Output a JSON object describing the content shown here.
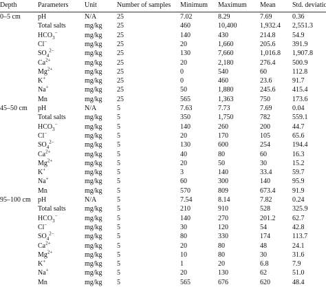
{
  "table": {
    "header": [
      "Depth",
      "Parameters",
      "Unit",
      "Number of samples",
      "Minimum",
      "Maximum",
      "Mean",
      "Std. deviation"
    ],
    "groups": [
      {
        "depth": "0–5 cm",
        "rows": [
          [
            {
              "base": "pH"
            },
            "N/A",
            "25",
            "7.02",
            "8.29",
            "7.69",
            "0.36"
          ],
          [
            {
              "base": "Total salts"
            },
            "mg/kg",
            "25",
            "460",
            "10,400",
            "1,932.4",
            "2,551.3"
          ],
          [
            {
              "base": "HCO",
              "sub": "3",
              "sup": "−"
            },
            "mg/kg",
            "25",
            "140",
            "430",
            "214.8",
            "54.9"
          ],
          [
            {
              "base": "Cl",
              "sup": "−"
            },
            "mg/kg",
            "25",
            "20",
            "1,660",
            "205.6",
            "391.9"
          ],
          [
            {
              "base": "SO",
              "sub": "4",
              "sup": "2−"
            },
            "mg/kg",
            "25",
            "130",
            "7,660",
            "1,016.8",
            "1,907.8"
          ],
          [
            {
              "base": "Ca",
              "sup": "2+"
            },
            "mg/kg",
            "25",
            "20",
            "2,180",
            "276.4",
            "500.9"
          ],
          [
            {
              "base": "Mg",
              "sup": "2+"
            },
            "mg/kg",
            "25",
            "0",
            "540",
            "60",
            "112.8"
          ],
          [
            {
              "base": "K",
              "sup": "+"
            },
            "mg/kg",
            "25",
            "0",
            "460",
            "23.6",
            "91.7"
          ],
          [
            {
              "base": "Na",
              "sup": "+"
            },
            "mg/kg",
            "25",
            "50",
            "1,880",
            "245.6",
            "415.4"
          ],
          [
            {
              "base": "Mn"
            },
            "mg/kg",
            "25",
            "565",
            "1,363",
            "750",
            "173.6"
          ]
        ]
      },
      {
        "depth": "45–50 cm",
        "rows": [
          [
            {
              "base": "pH"
            },
            "N/A",
            "5",
            "7.63",
            "7.73",
            "7.69",
            "0.04"
          ],
          [
            {
              "base": "Total salts"
            },
            "mg/kg",
            "5",
            "350",
            "1,750",
            "782",
            "559.1"
          ],
          [
            {
              "base": "HCO",
              "sub": "3",
              "sup": "−"
            },
            "mg/kg",
            "5",
            "140",
            "260",
            "200",
            "44.7"
          ],
          [
            {
              "base": "Cl",
              "sup": "−"
            },
            "mg/kg",
            "5",
            "20",
            "170",
            "105",
            "65.6"
          ],
          [
            {
              "base": "SO",
              "sub": "4",
              "sup": "2−"
            },
            "mg/kg",
            "5",
            "130",
            "600",
            "254",
            "194.4"
          ],
          [
            {
              "base": "Ca",
              "sup": "2+"
            },
            "mg/kg",
            "5",
            "40",
            "80",
            "60",
            "16.3"
          ],
          [
            {
              "base": "Mg",
              "sup": "2+"
            },
            "mg/kg",
            "5",
            "20",
            "50",
            "30",
            "15.2"
          ],
          [
            {
              "base": "K",
              "sup": "+"
            },
            "mg/kg",
            "5",
            "3",
            "140",
            "33.4",
            "59.7"
          ],
          [
            {
              "base": "Na",
              "sup": "+"
            },
            "mg/kg",
            "5",
            "60",
            "300",
            "140",
            "95.9"
          ],
          [
            {
              "base": "Mn"
            },
            "mg/kg",
            "5",
            "570",
            "809",
            "673.4",
            "91.9"
          ]
        ]
      },
      {
        "depth": "95–100 cm",
        "rows": [
          [
            {
              "base": "pH"
            },
            "N/A",
            "5",
            "7.54",
            "8.14",
            "7.82",
            "0.24"
          ],
          [
            {
              "base": "Total salts"
            },
            "mg/kg",
            "5",
            "210",
            "910",
            "528",
            "325.9"
          ],
          [
            {
              "base": "HCO",
              "sub": "3",
              "sup": "−"
            },
            "mg/kg",
            "5",
            "140",
            "270",
            "201.2",
            "62.7"
          ],
          [
            {
              "base": "Cl",
              "sup": "−"
            },
            "mg/kg",
            "5",
            "30",
            "120",
            "54",
            "42.8"
          ],
          [
            {
              "base": "SO",
              "sub": "4",
              "sup": "2−"
            },
            "mg/kg",
            "5",
            "80",
            "330",
            "174",
            "113.7"
          ],
          [
            {
              "base": "Ca",
              "sup": "2+"
            },
            "mg/kg",
            "5",
            "20",
            "80",
            "48",
            "24.1"
          ],
          [
            {
              "base": "Mg",
              "sup": "2+"
            },
            "mg/kg",
            "5",
            "10",
            "80",
            "30",
            "31.6"
          ],
          [
            {
              "base": "K",
              "sup": "+"
            },
            "mg/kg",
            "5",
            "1",
            "20",
            "6.8",
            "7.9"
          ],
          [
            {
              "base": "Na",
              "sup": "+"
            },
            "mg/kg",
            "5",
            "20",
            "130",
            "62",
            "51.0"
          ],
          [
            {
              "base": "Mn"
            },
            "mg/kg",
            "5",
            "565",
            "676",
            "620",
            "48.4"
          ]
        ]
      }
    ]
  }
}
